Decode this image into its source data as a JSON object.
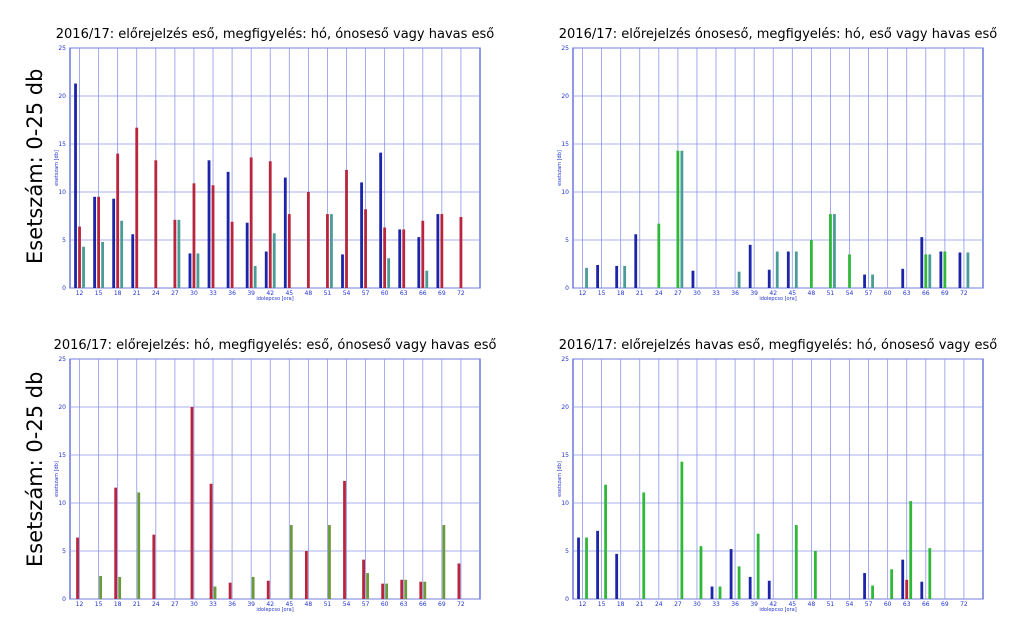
{
  "y_label": "Esetszám: 0-25 db",
  "colors": {
    "blue": "#1c24a8",
    "red": "#b8253c",
    "green": "#2fb83a",
    "olive": "#6a9a3a",
    "teal": "#4a9c96",
    "grid": "#8e96e6",
    "axis": "#2233cc"
  },
  "chart_data": [
    {
      "type": "bar",
      "title": "2016/17: előrejelzés eső, megfigyelés: hó, ónoseső vagy havas eső",
      "xlabel": "idolepcso [ora]",
      "ylabel": "esetszam [db]",
      "ylim": [
        0,
        25
      ],
      "yticks": [
        0,
        5,
        10,
        15,
        20,
        25
      ],
      "categories": [
        "12",
        "15",
        "18",
        "21",
        "24",
        "27",
        "30",
        "33",
        "36",
        "39",
        "42",
        "45",
        "48",
        "51",
        "54",
        "57",
        "60",
        "63",
        "66",
        "69",
        "72"
      ],
      "grid": true,
      "series": [
        {
          "color": "blue",
          "values": [
            21.3,
            9.5,
            9.3,
            5.6,
            0,
            0,
            3.6,
            13.3,
            12.1,
            6.8,
            3.8,
            11.5,
            0,
            0,
            3.5,
            11.0,
            14.1,
            6.1,
            5.3,
            7.7,
            0
          ]
        },
        {
          "color": "red",
          "values": [
            6.4,
            9.5,
            14.0,
            16.7,
            13.3,
            7.1,
            10.9,
            10.7,
            6.9,
            13.6,
            13.2,
            7.7,
            10.0,
            7.7,
            12.3,
            8.2,
            6.3,
            6.1,
            7.0,
            7.7,
            7.4
          ]
        },
        {
          "color": "teal",
          "values": [
            4.3,
            4.8,
            7.0,
            0,
            0,
            7.1,
            3.6,
            0,
            0,
            2.3,
            5.7,
            0,
            0,
            7.7,
            0,
            0,
            3.1,
            0,
            1.8,
            0,
            0
          ]
        }
      ]
    },
    {
      "type": "bar",
      "title": "2016/17: előrejelzés ónoseső, megfigyelés: hó, eső vagy havas eső",
      "xlabel": "idolepcso [ora]",
      "ylabel": "esetszam [db]",
      "ylim": [
        0,
        25
      ],
      "yticks": [
        0,
        5,
        10,
        15,
        20,
        25
      ],
      "categories": [
        "12",
        "15",
        "18",
        "21",
        "24",
        "27",
        "30",
        "33",
        "36",
        "39",
        "42",
        "45",
        "48",
        "51",
        "54",
        "57",
        "60",
        "63",
        "66",
        "69",
        "72"
      ],
      "grid": true,
      "series": [
        {
          "color": "blue",
          "values": [
            0,
            2.4,
            2.3,
            5.6,
            0,
            0,
            1.8,
            0,
            0,
            4.5,
            1.9,
            3.8,
            0,
            0,
            0,
            1.4,
            0,
            2.0,
            5.3,
            3.8,
            3.7
          ]
        },
        {
          "color": "green",
          "values": [
            0,
            0,
            0,
            0,
            6.7,
            14.3,
            0,
            0,
            0,
            0,
            0,
            0,
            5.0,
            7.7,
            3.5,
            0,
            0,
            0,
            3.5,
            3.8,
            0
          ]
        },
        {
          "color": "teal",
          "values": [
            2.1,
            0,
            2.3,
            0,
            0,
            14.3,
            0,
            0,
            1.7,
            0,
            3.8,
            3.8,
            0,
            7.7,
            0,
            1.4,
            0,
            0,
            3.5,
            0,
            3.7
          ]
        }
      ]
    },
    {
      "type": "bar",
      "title": "2016/17: előrejelzés: hó, megfigyelés: eső, ónoseső vagy havas eső",
      "xlabel": "idolepcso [ora]",
      "ylabel": "esetszam [db]",
      "ylim": [
        0,
        25
      ],
      "yticks": [
        0,
        5,
        10,
        15,
        20,
        25
      ],
      "categories": [
        "12",
        "15",
        "18",
        "21",
        "24",
        "27",
        "30",
        "33",
        "36",
        "39",
        "42",
        "45",
        "48",
        "51",
        "54",
        "57",
        "60",
        "63",
        "66",
        "69",
        "72"
      ],
      "grid": true,
      "series": [
        {
          "color": "red",
          "values": [
            6.4,
            0,
            11.6,
            0,
            6.7,
            0,
            20.0,
            12.0,
            1.7,
            0,
            1.9,
            0,
            5.0,
            0,
            12.3,
            4.1,
            1.6,
            2.0,
            1.8,
            0,
            3.7
          ]
        },
        {
          "color": "olive",
          "values": [
            0,
            2.4,
            2.3,
            11.1,
            0,
            0,
            0,
            1.3,
            0,
            2.3,
            0,
            7.7,
            0,
            7.7,
            0,
            2.7,
            1.6,
            2.0,
            1.8,
            7.7,
            0
          ]
        }
      ]
    },
    {
      "type": "bar",
      "title": "2016/17: előrejelzés havas eső, megfigyelés: hó, ónoseső vagy eső",
      "xlabel": "idolepcso [ora]",
      "ylabel": "esetszam [db]",
      "ylim": [
        0,
        25
      ],
      "yticks": [
        0,
        5,
        10,
        15,
        20,
        25
      ],
      "categories": [
        "12",
        "15",
        "18",
        "21",
        "24",
        "27",
        "30",
        "33",
        "36",
        "39",
        "42",
        "45",
        "48",
        "51",
        "54",
        "57",
        "60",
        "63",
        "66",
        "69",
        "72"
      ],
      "grid": true,
      "series": [
        {
          "color": "blue",
          "values": [
            6.4,
            7.1,
            4.7,
            0,
            0,
            0,
            0,
            1.3,
            5.2,
            2.3,
            1.9,
            0,
            0,
            0,
            0,
            2.7,
            0,
            4.1,
            1.8,
            0,
            0
          ]
        },
        {
          "color": "red",
          "values": [
            0,
            0,
            0,
            0,
            0,
            0,
            0,
            0,
            0,
            0,
            0,
            0,
            0,
            0,
            0,
            0,
            0,
            2.0,
            0,
            0,
            0
          ]
        },
        {
          "color": "green",
          "values": [
            6.4,
            11.9,
            0,
            11.1,
            0,
            14.3,
            5.5,
            1.3,
            3.4,
            6.8,
            0,
            7.7,
            5.0,
            0,
            0,
            1.4,
            3.1,
            10.2,
            5.3,
            0,
            0
          ]
        }
      ]
    }
  ]
}
